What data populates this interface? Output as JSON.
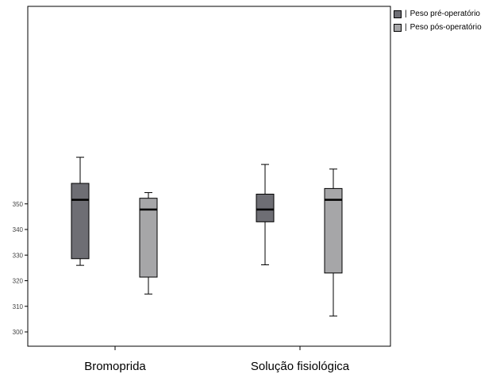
{
  "chart_data": {
    "type": "boxplot",
    "categories": [
      "Bromoprida",
      "Solução fisiológica"
    ],
    "ylim": [
      300,
      400
    ],
    "yticks": [
      300,
      310,
      320,
      330,
      340,
      350
    ],
    "ytick_labels": [
      "300",
      "310",
      "320",
      "330",
      "340",
      "350"
    ],
    "grid": false,
    "legend_position": "top-right",
    "series": [
      {
        "name": "Peso pré-operatório",
        "color": "#6e6e74",
        "boxes": [
          {
            "category": "Bromoprida",
            "min": 326.0,
            "q1": 328.6,
            "median": 351.6,
            "q3": 358.0,
            "max": 368.2
          },
          {
            "category": "Solução fisiológica",
            "min": 326.2,
            "q1": 343.0,
            "median": 347.8,
            "q3": 353.8,
            "max": 365.4
          }
        ]
      },
      {
        "name": "Peso pós-operatório",
        "color": "#a6a6a8",
        "boxes": [
          {
            "category": "Bromoprida",
            "min": 314.8,
            "q1": 321.4,
            "median": 347.8,
            "q3": 352.2,
            "max": 354.4
          },
          {
            "category": "Solução fisiológica",
            "min": 306.2,
            "q1": 323.0,
            "median": 351.6,
            "q3": 356.0,
            "max": 363.6
          }
        ]
      }
    ]
  }
}
